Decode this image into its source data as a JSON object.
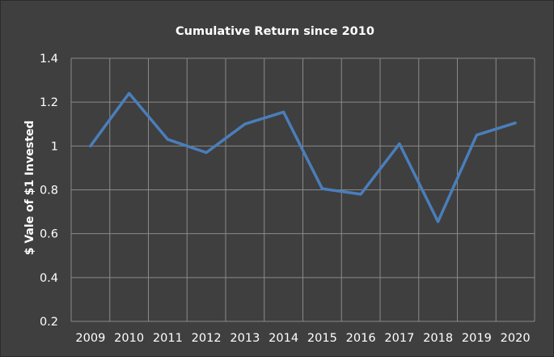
{
  "chart_data": {
    "type": "line",
    "title": "Cumulative Return since 2010",
    "xlabel": "",
    "ylabel": "$ Vale of $1 Invested",
    "categories": [
      "2009",
      "2010",
      "2011",
      "2012",
      "2013",
      "2014",
      "2015",
      "2016",
      "2017",
      "2018",
      "2019",
      "2020"
    ],
    "series": [
      {
        "values": [
          1.0,
          1.24,
          1.03,
          0.97,
          1.1,
          1.155,
          0.805,
          0.78,
          1.01,
          0.655,
          1.05,
          1.105
        ],
        "color": "#4a7ebb"
      }
    ],
    "ylim": [
      0.2,
      1.4
    ],
    "yticks": [
      "0.2",
      "0.4",
      "0.6",
      "0.8",
      "1",
      "1.2",
      "1.4"
    ],
    "grid": true,
    "legend": "none",
    "background": "#3f3f3f",
    "grid_color": "#8a8a8a",
    "text_color": "#ffffff"
  }
}
